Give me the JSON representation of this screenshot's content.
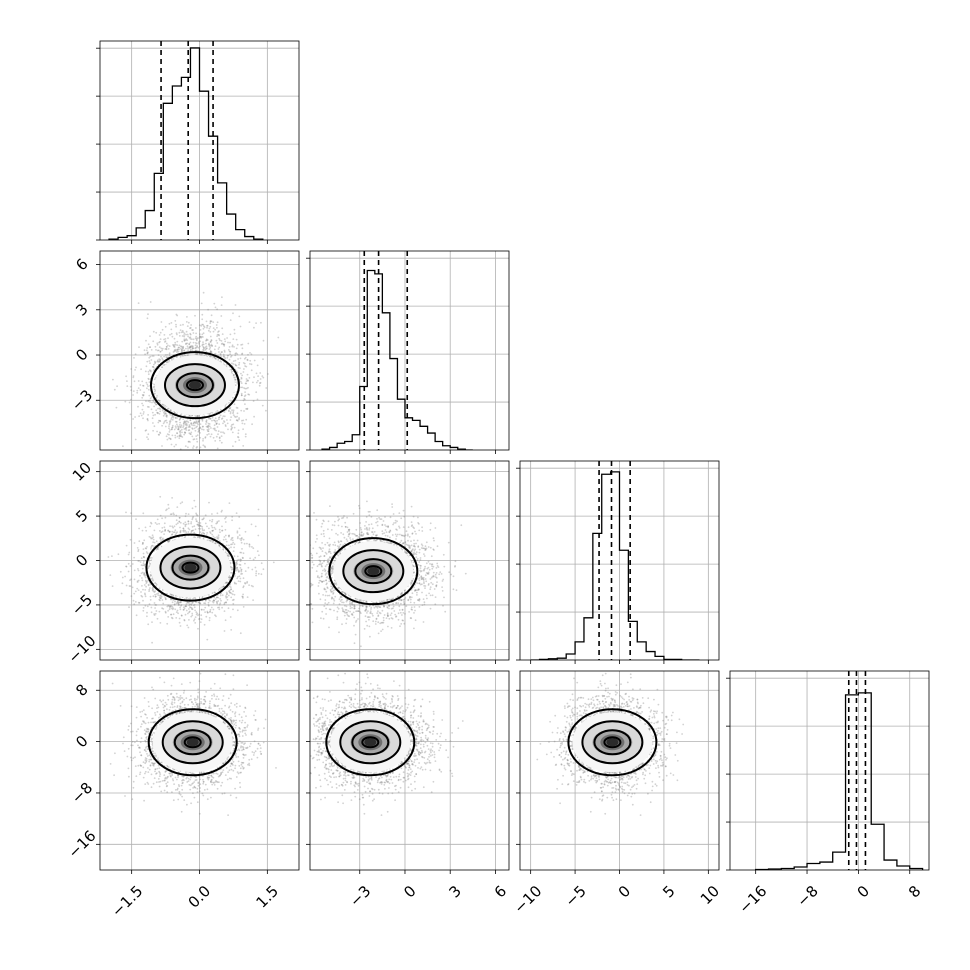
{
  "chart_data": {
    "type": "corner",
    "n_params": 4,
    "title": "",
    "parameter_labels": [
      "",
      "",
      "",
      ""
    ],
    "grid": true,
    "axes": [
      {
        "range": [
          -2.2,
          2.2
        ],
        "ticks": [
          -1.5,
          0.0,
          1.5
        ],
        "tick_labels": [
          "−1.5",
          "0.0",
          "1.5"
        ]
      },
      {
        "range": [
          -6.3,
          6.9
        ],
        "ticks": [
          -3,
          0,
          3,
          6
        ],
        "tick_labels": [
          "−3",
          "0",
          "3",
          "6"
        ]
      },
      {
        "range": [
          -11.2,
          11.2
        ],
        "ticks": [
          -10,
          -5,
          0,
          5,
          10
        ],
        "tick_labels": [
          "−10",
          "−5",
          "0",
          "5",
          "10"
        ]
      },
      {
        "range": [
          -20,
          11
        ],
        "ticks": [
          -16,
          -8,
          0,
          8
        ],
        "tick_labels": [
          "−16",
          "−8",
          "0",
          "8"
        ]
      }
    ],
    "histograms": [
      {
        "param": 0,
        "quantiles": [
          -0.85,
          -0.25,
          0.3
        ],
        "edges": [
          -2.0,
          -1.8,
          -1.6,
          -1.4,
          -1.2,
          -1.0,
          -0.8,
          -0.6,
          -0.4,
          -0.2,
          0.0,
          0.2,
          0.4,
          0.6,
          0.8,
          1.0,
          1.2,
          1.4
        ],
        "counts": [
          1,
          3,
          5,
          14,
          34,
          77,
          158,
          178,
          188,
          222,
          172,
          120,
          66,
          30,
          12,
          4,
          1
        ],
        "ylim": [
          0,
          230
        ]
      },
      {
        "param": 1,
        "quantiles": [
          -2.7,
          -1.75,
          0.15
        ],
        "edges": [
          -5.5,
          -5.0,
          -4.5,
          -4.0,
          -3.5,
          -3.0,
          -2.5,
          -2.0,
          -1.5,
          -1.0,
          -0.5,
          0.0,
          0.5,
          1.0,
          1.5,
          2.0,
          2.5,
          3.0,
          3.5,
          4.0,
          4.5
        ],
        "counts": [
          1,
          3,
          8,
          10,
          18,
          75,
          212,
          208,
          162,
          108,
          60,
          38,
          35,
          28,
          20,
          10,
          5,
          3,
          1,
          0
        ],
        "ylim": [
          0,
          235
        ]
      },
      {
        "param": 2,
        "quantiles": [
          -2.3,
          -0.9,
          1.2
        ],
        "edges": [
          -10,
          -9,
          -8,
          -7,
          -6,
          -5,
          -4,
          -3,
          -2,
          -1,
          0,
          1,
          2,
          3,
          4,
          5,
          6,
          7,
          8,
          9
        ],
        "counts": [
          0,
          1,
          2,
          3,
          10,
          30,
          70,
          210,
          308,
          312,
          182,
          64,
          30,
          14,
          6,
          1,
          1,
          0,
          0
        ],
        "ylim": [
          0,
          330
        ]
      },
      {
        "param": 3,
        "quantiles": [
          -1.5,
          -0.3,
          1.1
        ],
        "edges": [
          -16,
          -14,
          -12,
          -10,
          -8,
          -6,
          -4,
          -2,
          0,
          2,
          4,
          6,
          8,
          10
        ],
        "counts": [
          1,
          2,
          3,
          6,
          13,
          16,
          36,
          352,
          356,
          92,
          20,
          8,
          3
        ],
        "ylim": [
          0,
          400
        ]
      }
    ],
    "scatter": {
      "samples": 3000,
      "mean": [
        -0.22,
        -1.3,
        -0.8,
        -0.4
      ],
      "std": [
        0.55,
        1.8,
        2.5,
        3.2
      ],
      "point_color": "#7f7f7f"
    },
    "density_peaks": [
      {
        "x_param": 0,
        "y_param": 1,
        "x": -0.1,
        "y": -2.0
      },
      {
        "x_param": 0,
        "y_param": 2,
        "x": -0.2,
        "y": -0.8
      },
      {
        "x_param": 1,
        "y_param": 2,
        "x": -2.1,
        "y": -1.2
      },
      {
        "x_param": 0,
        "y_param": 3,
        "x": -0.15,
        "y": -0.1
      },
      {
        "x_param": 1,
        "y_param": 3,
        "x": -2.3,
        "y": -0.1
      },
      {
        "x_param": 2,
        "y_param": 3,
        "x": -0.8,
        "y": -0.1
      }
    ],
    "contour_color": "#000000",
    "density_colors": [
      "#f7f7f7",
      "#d9d9d9",
      "#a6a6a6",
      "#6e6e6e",
      "#2b2b2b"
    ]
  }
}
